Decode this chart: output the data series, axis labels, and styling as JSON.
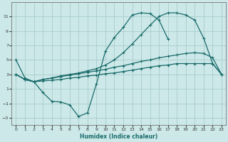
{
  "xlabel": "Humidex (Indice chaleur)",
  "bg_color": "#cce8e8",
  "grid_color": "#aacccc",
  "line_color": "#1a6b6b",
  "markersize": 2.5,
  "ylim": [
    -4,
    13
  ],
  "yticks": [
    -3,
    -1,
    1,
    3,
    5,
    7,
    9,
    11
  ],
  "xlim": [
    -0.5,
    23.5
  ],
  "xticks": [
    0,
    1,
    2,
    3,
    4,
    5,
    6,
    7,
    8,
    9,
    10,
    11,
    12,
    13,
    14,
    15,
    16,
    17,
    18,
    19,
    20,
    21,
    22,
    23
  ],
  "curve1_x": [
    0,
    1,
    2,
    3,
    4,
    5,
    6,
    7,
    8,
    9,
    10,
    11,
    12,
    13,
    14,
    15,
    16,
    17
  ],
  "curve1_y": [
    5.0,
    2.5,
    2.0,
    0.5,
    -0.7,
    -0.8,
    -1.2,
    -2.8,
    -2.3,
    1.7,
    6.2,
    8.1,
    9.5,
    11.2,
    11.5,
    11.4,
    10.5,
    7.9
  ],
  "curve2_x": [
    0,
    1,
    2,
    3,
    4,
    5,
    6,
    7,
    8,
    9,
    10,
    11,
    12,
    13,
    14,
    15,
    16,
    17,
    18,
    19,
    20,
    21,
    22,
    23
  ],
  "curve2_y": [
    3.0,
    2.3,
    2.0,
    2.1,
    2.2,
    2.3,
    2.5,
    2.6,
    2.8,
    2.9,
    3.1,
    3.2,
    3.4,
    3.6,
    3.8,
    4.0,
    4.2,
    4.3,
    4.5,
    4.5,
    4.5,
    4.5,
    4.5,
    3.0
  ],
  "curve3_x": [
    0,
    1,
    2,
    3,
    4,
    5,
    6,
    7,
    8,
    9,
    10,
    11,
    12,
    13,
    14,
    15,
    16,
    17,
    18,
    19,
    20,
    21,
    22,
    23
  ],
  "curve3_y": [
    3.0,
    2.3,
    2.0,
    2.3,
    2.5,
    2.7,
    2.9,
    3.1,
    3.3,
    3.5,
    3.7,
    4.0,
    4.2,
    4.5,
    4.8,
    5.0,
    5.3,
    5.5,
    5.7,
    5.9,
    6.0,
    5.9,
    5.3,
    3.0
  ],
  "curve4_x": [
    0,
    1,
    2,
    3,
    4,
    5,
    6,
    7,
    8,
    9,
    10,
    11,
    12,
    13,
    14,
    15,
    16,
    17,
    18,
    19,
    20,
    21,
    22,
    23
  ],
  "curve4_y": [
    3.0,
    2.3,
    2.0,
    2.3,
    2.5,
    2.8,
    3.0,
    3.2,
    3.5,
    3.8,
    4.3,
    5.0,
    6.0,
    7.2,
    8.5,
    9.8,
    11.0,
    11.5,
    11.5,
    11.2,
    10.5,
    8.0,
    4.5,
    3.0
  ]
}
